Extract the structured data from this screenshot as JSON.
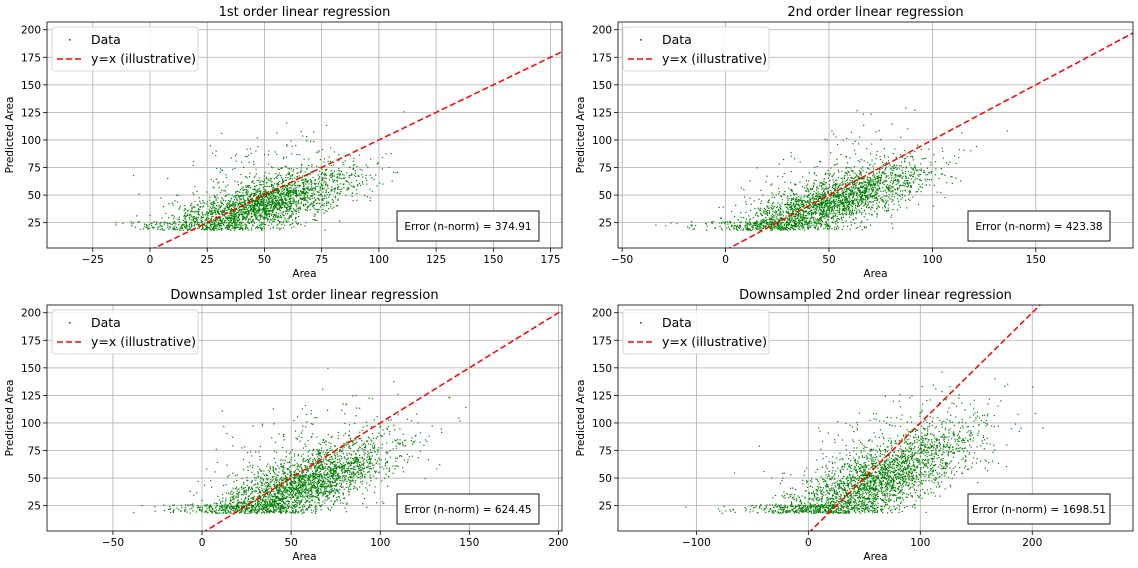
{
  "figure": {
    "background": "#ffffff"
  },
  "colors": {
    "data": "#008000",
    "line": "#ff0000",
    "grid": "#b0b0b0"
  },
  "chart_data": [
    {
      "type": "scatter",
      "title": "1st order linear regression",
      "xlabel": "Area",
      "ylabel": "Predicted Area",
      "xlim": [
        -45,
        180
      ],
      "ylim": [
        2,
        207
      ],
      "xticks": [
        -25,
        0,
        25,
        50,
        75,
        100,
        125,
        150,
        175
      ],
      "yticks": [
        25,
        50,
        75,
        100,
        125,
        150,
        175,
        200
      ],
      "grid": true,
      "legend": {
        "position": "top-left",
        "entries": [
          "Data",
          "y=x (illustrative)"
        ]
      },
      "series": [
        {
          "name": "Data",
          "kind": "points",
          "color": "#008000",
          "distribution": {
            "x_center": 48,
            "x_spread": 20,
            "y_intercept": 14,
            "y_slope": 0.55,
            "y_noise": 12,
            "y_min": 18,
            "y_cap": 173,
            "count": 2600
          }
        },
        {
          "name": "y=x (illustrative)",
          "kind": "dashed-line",
          "color": "#ff0000",
          "x": [
            0,
            180
          ],
          "y": [
            0,
            180
          ]
        }
      ],
      "annotation": "Error (n-norm) = 374.91"
    },
    {
      "type": "scatter",
      "title": "2nd order linear regression",
      "xlabel": "Area",
      "ylabel": "Predicted Area",
      "xlim": [
        -52,
        197
      ],
      "ylim": [
        2,
        207
      ],
      "xticks": [
        -50,
        0,
        50,
        100,
        150
      ],
      "yticks": [
        25,
        50,
        75,
        100,
        125,
        150,
        175,
        200
      ],
      "grid": true,
      "legend": {
        "position": "top-left",
        "entries": [
          "Data",
          "y=x (illustrative)"
        ]
      },
      "series": [
        {
          "name": "Data",
          "kind": "points",
          "color": "#008000",
          "distribution": {
            "x_center": 50,
            "x_spread": 23,
            "y_intercept": 12,
            "y_slope": 0.6,
            "y_noise": 13,
            "y_min": 18,
            "y_cap": 175,
            "count": 2600
          }
        },
        {
          "name": "y=x (illustrative)",
          "kind": "dashed-line",
          "color": "#ff0000",
          "x": [
            0,
            197
          ],
          "y": [
            0,
            197
          ]
        }
      ],
      "annotation": "Error (n-norm) = 423.38"
    },
    {
      "type": "scatter",
      "title": "Downsampled 1st order linear regression",
      "xlabel": "Area",
      "ylabel": "Predicted Area",
      "xlim": [
        -87,
        202
      ],
      "ylim": [
        2,
        207
      ],
      "xticks": [
        -50,
        0,
        50,
        100,
        150,
        200
      ],
      "yticks": [
        25,
        50,
        75,
        100,
        125,
        150,
        175,
        200
      ],
      "grid": true,
      "legend": {
        "position": "top-left",
        "entries": [
          "Data",
          "y=x (illustrative)"
        ]
      },
      "series": [
        {
          "name": "Data",
          "kind": "points",
          "color": "#008000",
          "distribution": {
            "x_center": 55,
            "x_spread": 27,
            "y_intercept": 10,
            "y_slope": 0.6,
            "y_noise": 15,
            "y_min": 18,
            "y_cap": 175,
            "count": 2800
          }
        },
        {
          "name": "y=x (illustrative)",
          "kind": "dashed-line",
          "color": "#ff0000",
          "x": [
            0,
            202
          ],
          "y": [
            0,
            202
          ]
        }
      ],
      "annotation": "Error (n-norm) = 624.45"
    },
    {
      "type": "scatter",
      "title": "Downsampled 2nd order linear regression",
      "xlabel": "Area",
      "ylabel": "Predicted Area",
      "xlim": [
        -170,
        290
      ],
      "ylim": [
        2,
        207
      ],
      "xticks": [
        -100,
        0,
        100,
        200
      ],
      "yticks": [
        25,
        50,
        75,
        100,
        125,
        150,
        175,
        200
      ],
      "grid": true,
      "legend": {
        "position": "top-left",
        "entries": [
          "Data",
          "y=x (illustrative)"
        ]
      },
      "series": [
        {
          "name": "Data",
          "kind": "points",
          "color": "#008000",
          "distribution": {
            "x_center": 60,
            "x_spread": 45,
            "y_intercept": 20,
            "y_slope": 0.45,
            "y_noise": 18,
            "y_min": 18,
            "y_cap": 175,
            "count": 2800
          }
        },
        {
          "name": "y=x (illustrative)",
          "kind": "dashed-line",
          "color": "#ff0000",
          "x": [
            0,
            290
          ],
          "y": [
            0,
            290
          ]
        }
      ],
      "annotation": "Error (n-norm) = 1698.51"
    }
  ]
}
